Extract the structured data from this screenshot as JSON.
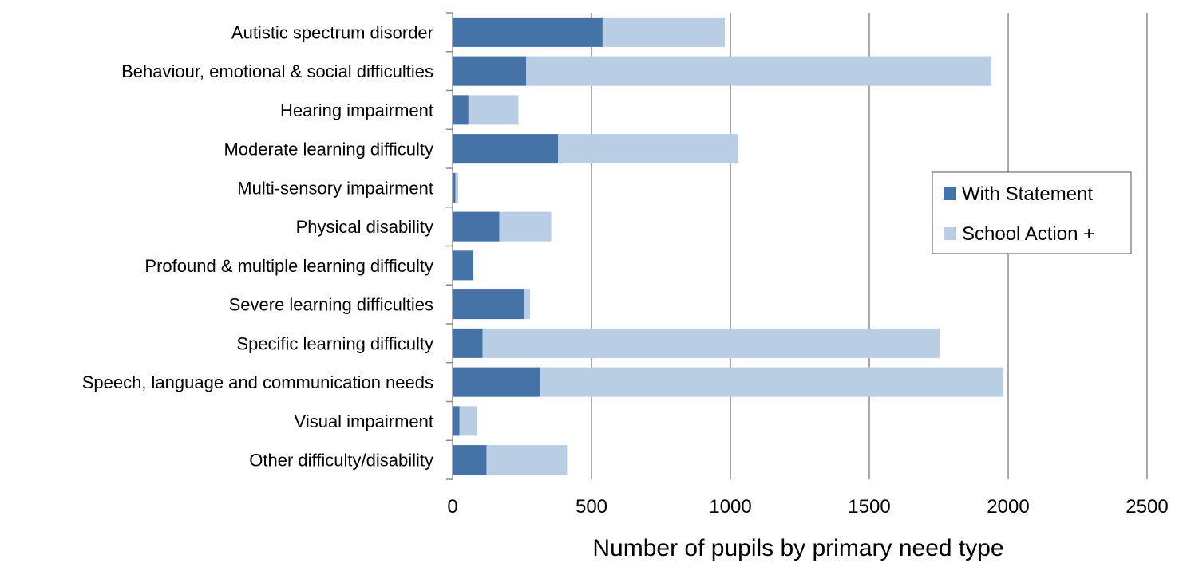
{
  "chart_data": {
    "type": "bar",
    "orientation": "horizontal",
    "stacked": true,
    "title": "",
    "xlabel": "Number of pupils by primary need type",
    "ylabel": "",
    "xlim": [
      0,
      2500
    ],
    "xticks": [
      "0",
      "500",
      "1000",
      "1500",
      "2000",
      "2500"
    ],
    "grid": "vertical",
    "legend_position": "right",
    "categories": [
      "Autistic spectrum disorder",
      "Behaviour, emotional & social difficulties",
      "Hearing impairment",
      "Moderate learning difficulty",
      "Multi-sensory impairment",
      "Physical disability",
      "Profound & multiple learning difficulty",
      "Severe learning difficulties",
      "Specific learning difficulty",
      "Speech, language and communication needs",
      "Visual impairment",
      "Other difficulty/disability"
    ],
    "series": [
      {
        "name": "With Statement",
        "color": "#4572a7",
        "values": [
          540,
          265,
          57,
          380,
          10,
          168,
          75,
          257,
          108,
          315,
          25,
          122
        ]
      },
      {
        "name": "School Action +",
        "color": "#b9cde5",
        "values": [
          440,
          1675,
          180,
          648,
          10,
          187,
          0,
          22,
          1645,
          1668,
          62,
          290
        ]
      }
    ]
  }
}
